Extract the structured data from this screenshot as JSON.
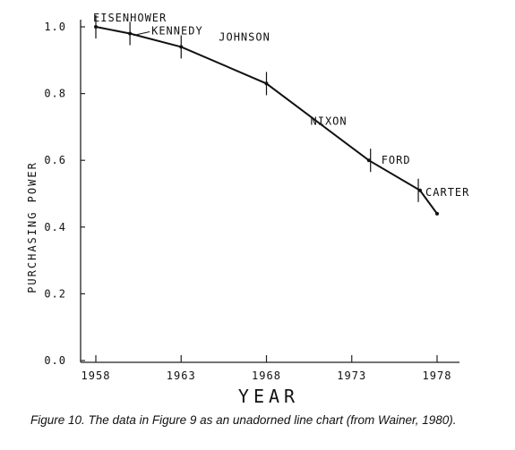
{
  "chart_data": {
    "type": "line",
    "title": "",
    "xlabel": "YEAR",
    "ylabel": "PURCHASING POWER",
    "xlim": [
      1958,
      1978
    ],
    "ylim": [
      0.0,
      1.0
    ],
    "x_ticks": [
      "1958",
      "1963",
      "1968",
      "1973",
      "1978"
    ],
    "y_ticks": [
      "0.0",
      "0.2",
      "0.4",
      "0.6",
      "0.8",
      "1.0"
    ],
    "grid": false,
    "legend": "none",
    "series": [
      {
        "x": [
          1958,
          1960,
          1963,
          1968,
          1974,
          1977,
          1978
        ],
        "y": [
          1.0,
          0.98,
          0.94,
          0.83,
          0.6,
          0.51,
          0.44
        ]
      }
    ],
    "term_markers": [
      {
        "year": 1958.0,
        "value": 1.0
      },
      {
        "year": 1960.0,
        "value": 0.98
      },
      {
        "year": 1963.0,
        "value": 0.94
      },
      {
        "year": 1968.0,
        "value": 0.83
      },
      {
        "year": 1974.1,
        "value": 0.6
      },
      {
        "year": 1976.9,
        "value": 0.51
      }
    ],
    "president_labels": [
      {
        "label": "EISENHOWER",
        "year": 1958.0,
        "value": 1.0
      },
      {
        "label": "KENNEDY",
        "year": 1960.0,
        "value": 0.98
      },
      {
        "label": "JOHNSON",
        "year": 1963.0,
        "value": 0.94
      },
      {
        "label": "NIXON",
        "year": 1968.0,
        "value": 0.83
      },
      {
        "label": "FORD",
        "year": 1974.1,
        "value": 0.6
      },
      {
        "label": "CARTER",
        "year": 1976.9,
        "value": 0.51
      }
    ]
  },
  "caption": "Figure 10. The data in Figure 9 as an unadorned line chart (from Wainer, 1980)."
}
